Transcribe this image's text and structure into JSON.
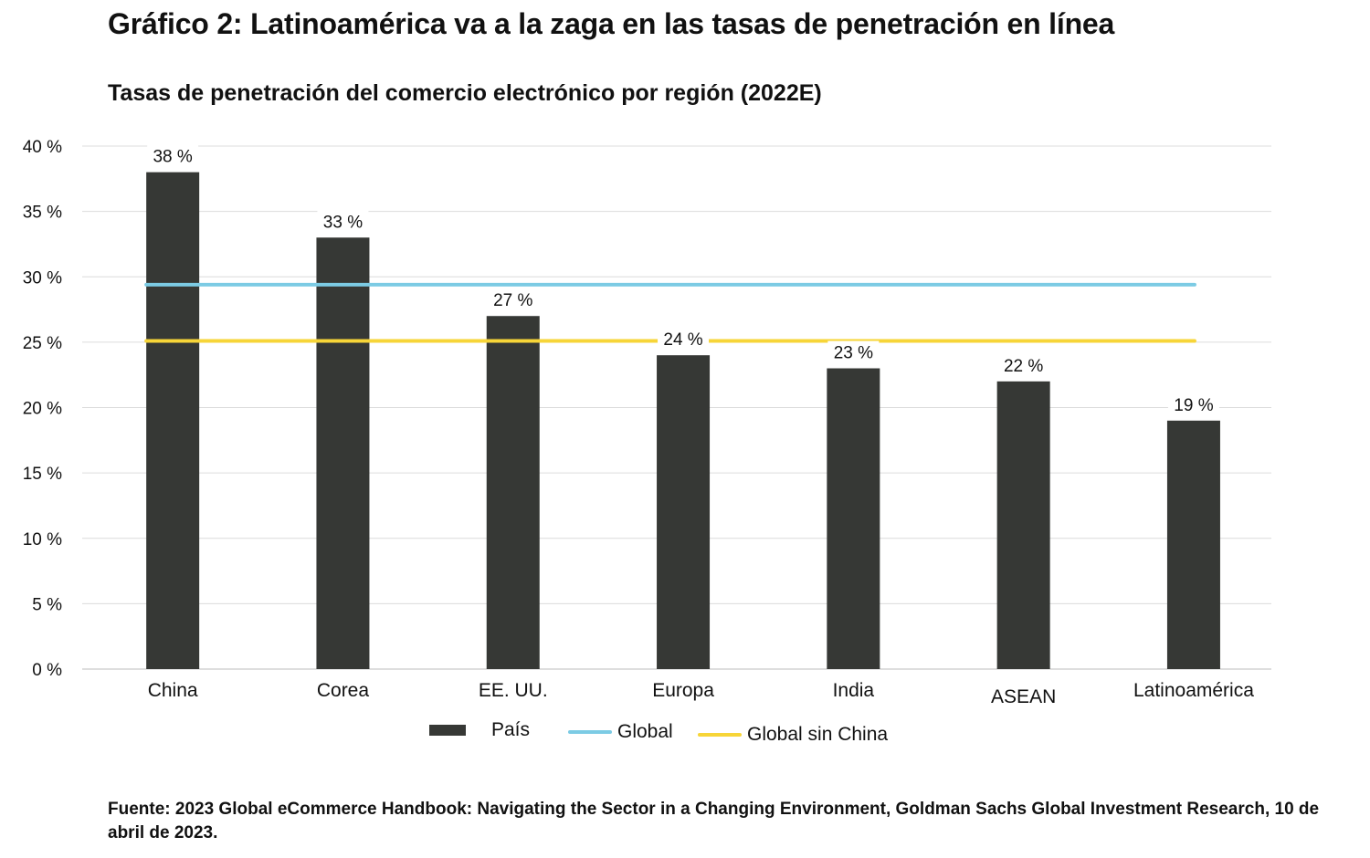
{
  "header": {
    "title": "Gráfico 2: Latinoamérica va a la zaga en las tasas de penetración en línea",
    "subtitle": "Tasas de penetración del comercio electrónico por región (2022E)"
  },
  "chart_data": {
    "type": "bar",
    "categories": [
      "China",
      "Corea",
      "EE. UU.",
      "Europa",
      "India",
      "ASEAN",
      "Latinoamérica"
    ],
    "series": [
      {
        "name": "País",
        "type": "bar",
        "values": [
          38,
          33,
          27,
          24,
          23,
          22,
          19
        ],
        "color": "#363835"
      },
      {
        "name": "Global",
        "type": "line",
        "values": [
          29.4,
          29.4,
          29.4,
          29.4,
          29.4,
          29.4,
          29.4
        ],
        "color": "#7ccbe4"
      },
      {
        "name": "Global sin China",
        "type": "line",
        "values": [
          25.1,
          25.1,
          25.1,
          25.1,
          25.1,
          25.1,
          25.1
        ],
        "color": "#f7d538"
      }
    ],
    "data_labels": [
      "38 %",
      "33 %",
      "27 %",
      "24 %",
      "23 %",
      "22 %",
      "19 %"
    ],
    "yticks": [
      0,
      5,
      10,
      15,
      20,
      25,
      30,
      35,
      40
    ],
    "ytick_labels": [
      "0 %",
      "5 %",
      "10 %",
      "15 %",
      "20 %",
      "25 %",
      "30 %",
      "35 %",
      "40 %"
    ],
    "ylim": [
      0,
      40
    ],
    "grid": true,
    "legend_placement": "bottom"
  },
  "legend": {
    "items": [
      {
        "label": "País"
      },
      {
        "label": "Global"
      },
      {
        "label": "Global sin China"
      }
    ]
  },
  "source": {
    "text": "Fuente: 2023 Global eCommerce Handbook: Navigating the Sector in a Changing Environment, Goldman Sachs Global Investment Research, 10 de abril de 2023."
  }
}
